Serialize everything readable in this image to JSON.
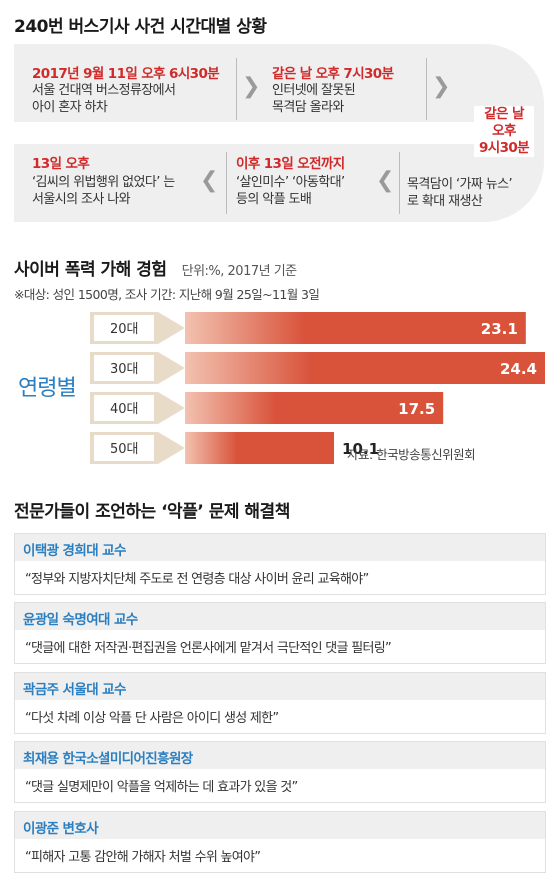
{
  "timeline": {
    "title": "240번 버스기사 사건 시간대별 상황",
    "events": [
      {
        "date": "2017년 9월 11일 오후 6시30분",
        "desc": [
          "서울 건대역 버스정류장에서",
          "아이 혼자 하차"
        ]
      },
      {
        "date": "같은 날 오후 7시30분",
        "desc": [
          "인터넷에 잘못된",
          "목격담 올라와"
        ]
      },
      {
        "date": "같은 날 오후 9시30분",
        "date_lines": [
          "같은 날",
          "오후",
          "9시30분"
        ],
        "desc": [
          "목격담이 ‘가짜 뉴스’",
          "로 확대 재생산"
        ]
      },
      {
        "date": "이후 13일 오전까지",
        "desc": [
          "‘살인미수’ ‘아동학대’",
          "등의 악플 도배"
        ]
      },
      {
        "date": "13일 오후",
        "desc": [
          "‘김씨의 위법행위 없었다’ 는",
          "서울시의 조사 나와"
        ]
      }
    ],
    "arrow_icon": "chevron-arrow-icon"
  },
  "chart": {
    "title": "사이버 폭력 가해 경험",
    "unit": "단위:%, 2017년 기준",
    "note": "※대상: 성인 1500명, 조사 기간: 지난해 9월 25일~11월 3일",
    "axis_label": "연령별",
    "source": "자료: 한국방송통신위원회"
  },
  "chart_data": {
    "type": "bar",
    "orientation": "horizontal",
    "title": "사이버 폭력 가해 경험",
    "ylabel": "연령별",
    "categories": [
      "20대",
      "30대",
      "40대",
      "50대"
    ],
    "values": [
      23.1,
      24.4,
      17.5,
      10.1
    ],
    "value_labels": [
      "23.1",
      "24.4",
      "17.5",
      "10.1"
    ],
    "unit": "%",
    "xlim": [
      0,
      24.4
    ],
    "colors": {
      "bar": "#d9533b",
      "bar_light": "#f2c2b0",
      "label_pencil": "#e8dcc8"
    }
  },
  "experts": {
    "title": "전문가들이 조언하는 ‘악플’ 문제 해결책",
    "items": [
      {
        "name": "이택광 경희대 교수",
        "quote": "“정부와 지방자치단체 주도로 전 연령층  대상 사이버 윤리 교육해야”"
      },
      {
        "name": "윤광일 숙명여대 교수",
        "quote": "“댓글에 대한 저작권·편집권을 언론사에게 맡겨서 극단적인 댓글 필터링”"
      },
      {
        "name": "곽금주 서울대 교수",
        "quote": "“다섯 차례 이상 악플 단 사람은 아이디 생성 제한”"
      },
      {
        "name": "최재용 한국소셜미디어진흥원장",
        "quote": "“댓글 실명제만이 악플을 억제하는 데 효과가 있을 것”"
      },
      {
        "name": "이광준 변호사",
        "quote": "“피해자 고통 감안해 가해자 처벌 수위 높여야”"
      }
    ]
  },
  "colors": {
    "accent_red": "#d12a2a",
    "accent_blue": "#2b7fc0",
    "band": "#efefef"
  }
}
